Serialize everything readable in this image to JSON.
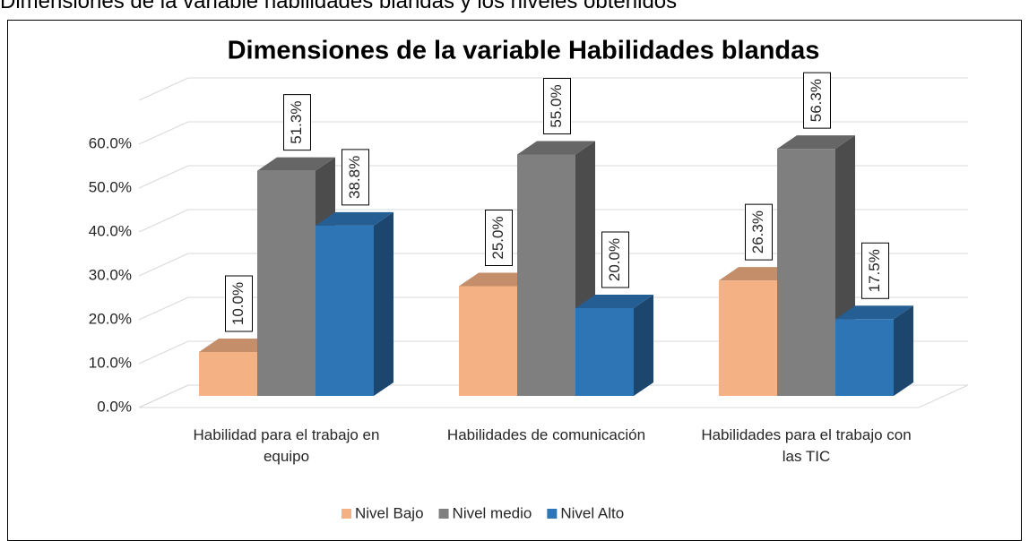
{
  "caption": "Dimensiones de la variable habilidades blandas y los niveles obtenidos",
  "chart_data": {
    "type": "bar3d",
    "title": "Dimensiones de la variable Habilidades blandas",
    "categories": [
      "Habilidad para el trabajo en equipo",
      "Habilidades de comunicación",
      "Habilidades para el trabajo con las TIC"
    ],
    "series": [
      {
        "name": "Nivel Bajo",
        "color": "#f4b183",
        "values": [
          10.0,
          25.0,
          26.3
        ],
        "value_labels": [
          "10.0%",
          "25.0%",
          "26.3%"
        ]
      },
      {
        "name": "Nivel medio",
        "color": "#7f7f7f",
        "values": [
          51.3,
          55.0,
          56.3
        ],
        "value_labels": [
          "51.3%",
          "55.0%",
          "56.3%"
        ]
      },
      {
        "name": "Nivel Alto",
        "color": "#2e75b6",
        "values": [
          38.8,
          20.0,
          17.5
        ],
        "value_labels": [
          "38.8%",
          "20.0%",
          "17.5%"
        ]
      }
    ],
    "ylim": [
      0,
      60
    ],
    "yticks": [
      {
        "value": 0,
        "label": "0.0%"
      },
      {
        "value": 10,
        "label": "10.0%"
      },
      {
        "value": 20,
        "label": "20.0%"
      },
      {
        "value": 30,
        "label": "30.0%"
      },
      {
        "value": 40,
        "label": "40.0%"
      },
      {
        "value": 50,
        "label": "50.0%"
      },
      {
        "value": 60,
        "label": "60.0%"
      }
    ],
    "grid": true,
    "legend": "bottom"
  }
}
